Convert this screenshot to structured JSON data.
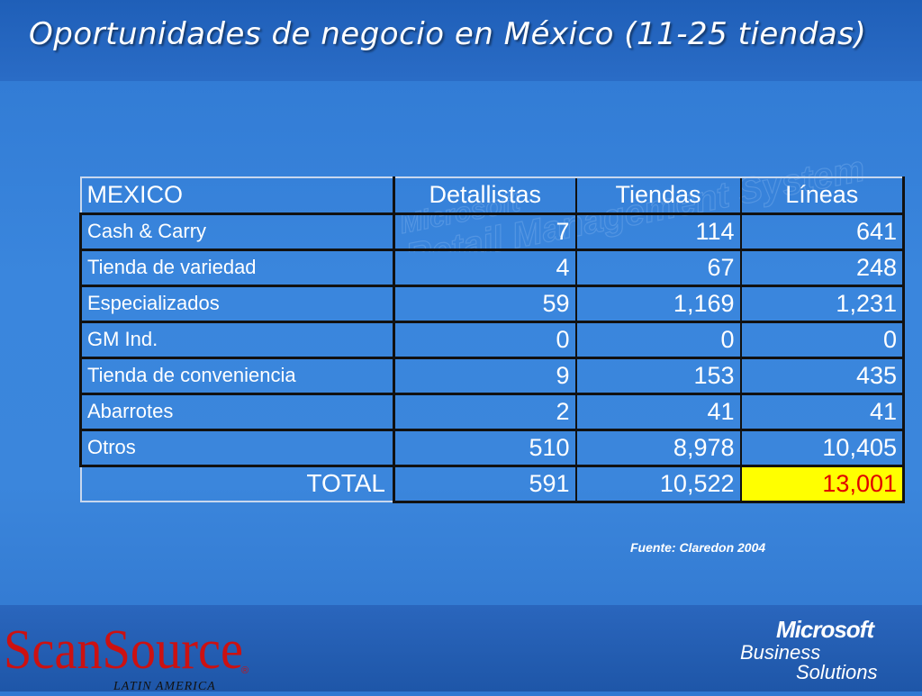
{
  "title": "Oportunidades de negocio en México (11-25 tiendas)",
  "table": {
    "headers": [
      "MEXICO",
      "Detallistas",
      "Tiendas",
      "Líneas"
    ],
    "rows": [
      {
        "label": "Cash & Carry",
        "detallistas": "7",
        "tiendas": "114",
        "lineas": "641"
      },
      {
        "label": "Tienda de variedad",
        "detallistas": "4",
        "tiendas": "67",
        "lineas": "248"
      },
      {
        "label": "Especializados",
        "detallistas": "59",
        "tiendas": "1,169",
        "lineas": "1,231"
      },
      {
        "label": "GM Ind.",
        "detallistas": "0",
        "tiendas": "0",
        "lineas": "0"
      },
      {
        "label": "Tienda de conveniencia",
        "detallistas": "9",
        "tiendas": "153",
        "lineas": "435"
      },
      {
        "label": "Abarrotes",
        "detallistas": "2",
        "tiendas": "41",
        "lineas": "41"
      },
      {
        "label": "Otros",
        "detallistas": "510",
        "tiendas": "8,978",
        "lineas": "10,405"
      }
    ],
    "total": {
      "label": "TOTAL",
      "detallistas": "591",
      "tiendas": "10,522",
      "lineas": "13,001"
    },
    "highlight_color": "#ffff00",
    "highlight_text_color": "#e00000"
  },
  "source": "Fuente: Claredon 2004",
  "watermark": {
    "line1": "Microsoft",
    "line2": "Retail Management System"
  },
  "logos": {
    "scansource": {
      "brand": "ScanSource",
      "region": "LATIN AMERICA",
      "mark": "®",
      "color": "#cc1111"
    },
    "microsoft": {
      "brand": "Microsoft",
      "line1": "Business",
      "line2": "Solutions"
    }
  }
}
